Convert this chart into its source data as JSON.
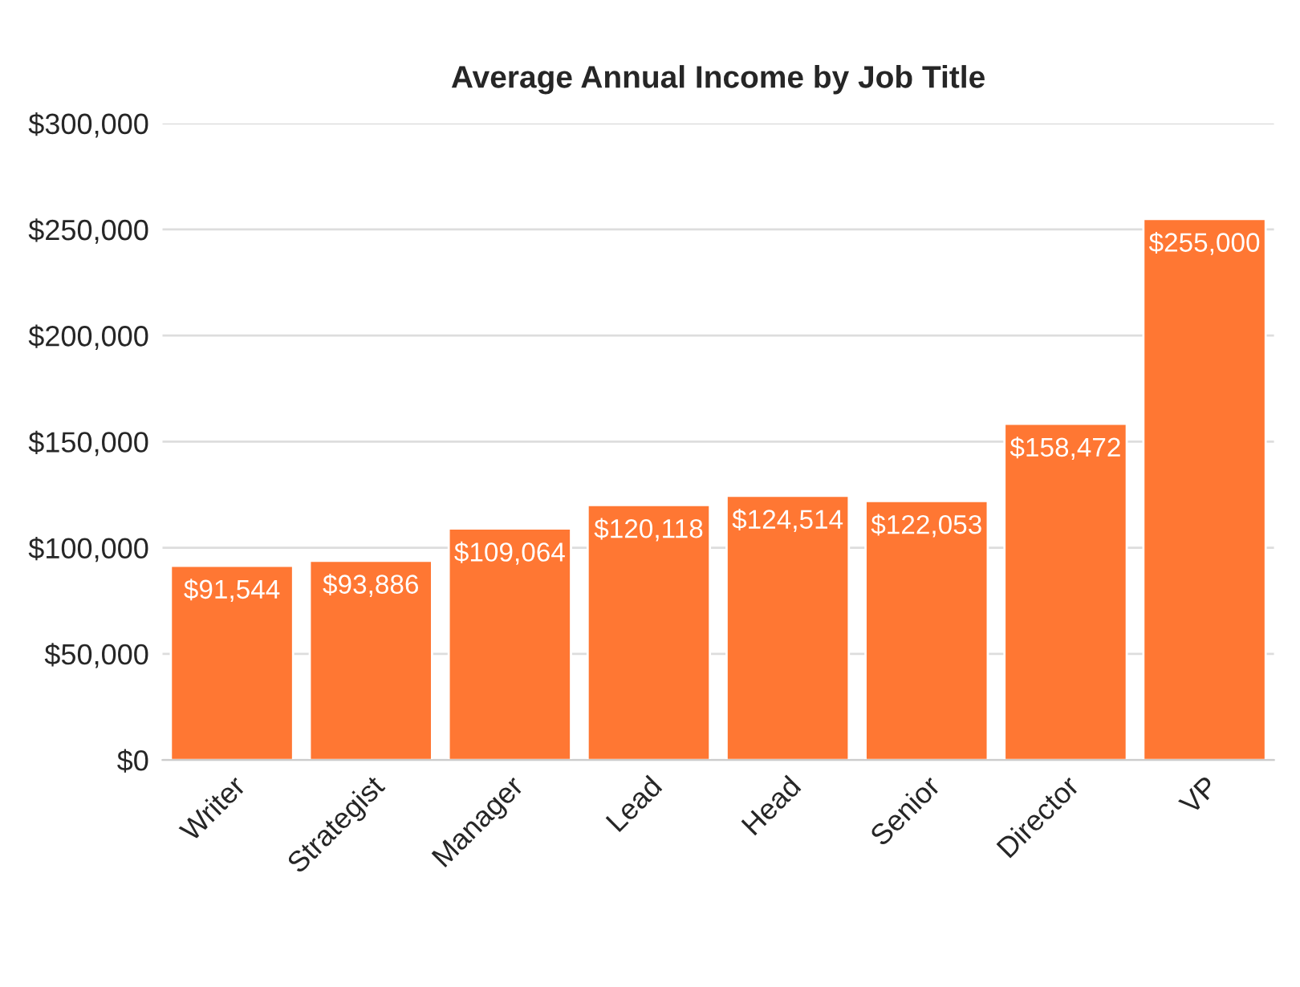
{
  "chart_data": {
    "type": "bar",
    "title": "Average Annual Income by Job Title",
    "categories": [
      "Writer",
      "Strategist",
      "Manager",
      "Lead",
      "Head",
      "Senior",
      "Director",
      "VP"
    ],
    "values": [
      91544,
      93886,
      109064,
      120118,
      124514,
      122053,
      158472,
      255000
    ],
    "value_labels": [
      "$91,544",
      "$93,886",
      "$109,064",
      "$120,118",
      "$124,514",
      "$122,053",
      "$158,472",
      "$255,000"
    ],
    "color": "#ff7733",
    "ylim": [
      0,
      300000
    ],
    "yticks": [
      {
        "value": 0,
        "label": "$0"
      },
      {
        "value": 50000,
        "label": "$50,000"
      },
      {
        "value": 100000,
        "label": "$100,000"
      },
      {
        "value": 150000,
        "label": "$150,000"
      },
      {
        "value": 200000,
        "label": "$200,000"
      },
      {
        "value": 250000,
        "label": "$250,000"
      },
      {
        "value": 300000,
        "label": "$300,000"
      }
    ],
    "grid": "y",
    "legend": false
  }
}
